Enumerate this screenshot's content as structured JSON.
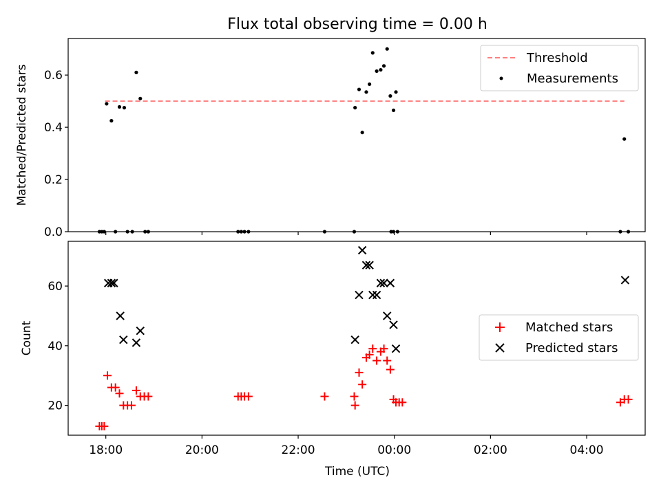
{
  "figure": {
    "title": "Flux total observing time = 0.00 h",
    "xlabel": "Time (UTC)"
  },
  "colors": {
    "threshold": "#ff7f7f",
    "measurements": "#000000",
    "matched": "#ff0000",
    "predicted": "#000000",
    "axes": "#000000"
  },
  "chart_data": [
    {
      "type": "scatter",
      "ylabel": "Matched/Predicted stars",
      "xlim": [
        "17:13",
        "05:13"
      ],
      "ylim": [
        0,
        0.74
      ],
      "yticks": [
        0.0,
        0.2,
        0.4,
        0.6
      ],
      "ytick_labels": [
        "0.0",
        "0.2",
        "0.4",
        "0.6"
      ],
      "grid": false,
      "legend_position": "upper right",
      "threshold": {
        "name": "Threshold",
        "y": 0.5,
        "x_start": "17:59",
        "x_end": "04:47",
        "style": "dashed"
      },
      "series": [
        {
          "name": "Measurements",
          "marker": "dot",
          "points": [
            [
              "17:52",
              0.0
            ],
            [
              "17:55",
              0.0
            ],
            [
              "17:58",
              0.0
            ],
            [
              "18:01",
              0.49
            ],
            [
              "18:07",
              0.425
            ],
            [
              "18:12",
              0.0
            ],
            [
              "18:17",
              0.478
            ],
            [
              "18:23",
              0.475
            ],
            [
              "18:27",
              0.0
            ],
            [
              "18:33",
              0.0
            ],
            [
              "18:38",
              0.61
            ],
            [
              "18:43",
              0.51
            ],
            [
              "18:49",
              0.0
            ],
            [
              "18:53",
              0.0
            ],
            [
              "20:45",
              0.0
            ],
            [
              "20:49",
              0.0
            ],
            [
              "20:53",
              0.0
            ],
            [
              "20:58",
              0.0
            ],
            [
              "22:33",
              0.0
            ],
            [
              "23:56",
              0.0
            ],
            [
              "23:59",
              0.0
            ],
            [
              "00:04",
              0.0
            ],
            [
              "23:10",
              0.0
            ],
            [
              "23:11",
              0.475
            ],
            [
              "23:16",
              0.545
            ],
            [
              "23:20",
              0.38
            ],
            [
              "23:25",
              0.535
            ],
            [
              "23:29",
              0.565
            ],
            [
              "23:33",
              0.685
            ],
            [
              "23:38",
              0.615
            ],
            [
              "23:43",
              0.62
            ],
            [
              "23:47",
              0.635
            ],
            [
              "23:51",
              0.7
            ],
            [
              "23:55",
              0.52
            ],
            [
              "23:59",
              0.465
            ],
            [
              "00:02",
              0.535
            ],
            [
              "04:42",
              0.0
            ],
            [
              "04:47",
              0.355
            ],
            [
              "04:52",
              0.0
            ]
          ]
        }
      ]
    },
    {
      "type": "scatter",
      "ylabel": "Count",
      "xlim": [
        "17:13",
        "05:13"
      ],
      "ylim": [
        10,
        75
      ],
      "yticks": [
        20,
        40,
        60
      ],
      "ytick_labels": [
        "20",
        "40",
        "60"
      ],
      "xticks": [
        "18:00",
        "20:00",
        "22:00",
        "00:00",
        "02:00",
        "04:00"
      ],
      "xtick_labels": [
        "18:00",
        "20:00",
        "22:00",
        "00:00",
        "02:00",
        "04:00"
      ],
      "grid": false,
      "legend_position": "center right",
      "series": [
        {
          "name": "Matched stars",
          "marker": "plus",
          "points": [
            [
              "17:52",
              13
            ],
            [
              "17:55",
              13
            ],
            [
              "17:58",
              13
            ],
            [
              "18:02",
              30
            ],
            [
              "18:07",
              26
            ],
            [
              "18:12",
              26
            ],
            [
              "18:17",
              24
            ],
            [
              "18:22",
              20
            ],
            [
              "18:27",
              20
            ],
            [
              "18:32",
              20
            ],
            [
              "18:38",
              25
            ],
            [
              "18:43",
              23
            ],
            [
              "18:48",
              23
            ],
            [
              "18:53",
              23
            ],
            [
              "20:45",
              23
            ],
            [
              "20:49",
              23
            ],
            [
              "20:53",
              23
            ],
            [
              "20:58",
              23
            ],
            [
              "22:33",
              23
            ],
            [
              "23:10",
              23
            ],
            [
              "23:11",
              20
            ],
            [
              "23:16",
              31
            ],
            [
              "23:20",
              27
            ],
            [
              "23:25",
              36
            ],
            [
              "23:29",
              37
            ],
            [
              "23:33",
              39
            ],
            [
              "23:38",
              35
            ],
            [
              "23:43",
              38
            ],
            [
              "23:47",
              39
            ],
            [
              "23:51",
              35
            ],
            [
              "23:55",
              32
            ],
            [
              "23:59",
              22
            ],
            [
              "00:02",
              21
            ],
            [
              "00:06",
              21
            ],
            [
              "00:10",
              21
            ],
            [
              "04:42",
              21
            ],
            [
              "04:47",
              22
            ],
            [
              "04:52",
              22
            ]
          ]
        },
        {
          "name": "Predicted stars",
          "marker": "x",
          "points": [
            [
              "18:03",
              61
            ],
            [
              "18:07",
              61
            ],
            [
              "18:10",
              61
            ],
            [
              "18:18",
              50
            ],
            [
              "18:22",
              42
            ],
            [
              "18:38",
              41
            ],
            [
              "18:43",
              45
            ],
            [
              "23:11",
              42
            ],
            [
              "23:16",
              57
            ],
            [
              "23:20",
              72
            ],
            [
              "23:25",
              67
            ],
            [
              "23:29",
              67
            ],
            [
              "23:33",
              57
            ],
            [
              "23:38",
              57
            ],
            [
              "23:43",
              61
            ],
            [
              "23:47",
              61
            ],
            [
              "23:51",
              50
            ],
            [
              "23:55",
              61
            ],
            [
              "23:59",
              47
            ],
            [
              "00:02",
              39
            ],
            [
              "04:48",
              62
            ]
          ]
        }
      ]
    }
  ]
}
